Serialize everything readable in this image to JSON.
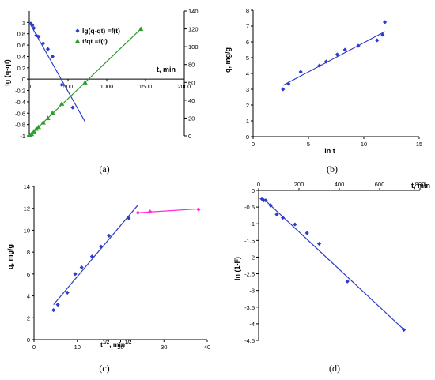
{
  "colors": {
    "blue": "#2e3cc8",
    "green": "#2e9c2e",
    "magenta": "#ff2bd5",
    "axis": "#000000"
  },
  "chart_data": [
    {
      "id": "a",
      "type": "scatter",
      "panel_label": "(a)",
      "ylabel_left": "lg (q-qt)",
      "ylabel_right": "",
      "xlabel": "t, min",
      "xlim": [
        0,
        2000
      ],
      "ylim_left": [
        -1,
        1.2
      ],
      "ylim_right": [
        0,
        140
      ],
      "x_ticks": [
        0,
        500,
        1000,
        1500,
        2000
      ],
      "y_ticks_left": [
        -1,
        -0.8,
        -0.6,
        -0.4,
        -0.2,
        0,
        0.2,
        0.4,
        0.6,
        0.8,
        1
      ],
      "y_ticks_left_labels": [
        "-1",
        "-0.8",
        "-0.6",
        "-0.4",
        "-0.2",
        "0",
        "0.2",
        "0.4",
        "0.6",
        "0.8",
        "1"
      ],
      "y_ticks_right": [
        0,
        20,
        40,
        60,
        80,
        100,
        120,
        140
      ],
      "series": [
        {
          "name": "lg(q-qt) =f(t)",
          "axis": "left",
          "marker": "diamond",
          "color": "#2e3cc8",
          "x": [
            20,
            40,
            60,
            90,
            120,
            180,
            240,
            300,
            420,
            560
          ],
          "y": [
            0.98,
            0.95,
            0.9,
            0.77,
            0.75,
            0.63,
            0.53,
            0.4,
            -0.1,
            -0.5
          ],
          "fit": {
            "x": [
              0,
              720
            ],
            "y": [
              1.0,
              -0.75
            ]
          }
        },
        {
          "name": "t/qt =f(t)",
          "axis": "right",
          "marker": "triangle",
          "color": "#2e9c2e",
          "x": [
            10,
            30,
            60,
            90,
            120,
            180,
            240,
            300,
            420,
            720,
            1440
          ],
          "y": [
            1,
            2,
            5,
            8,
            10,
            15,
            20,
            26,
            36,
            60,
            120
          ],
          "fit": {
            "x": [
              0,
              1440
            ],
            "y": [
              0,
              120
            ]
          }
        }
      ],
      "legend_position": "middle-right"
    },
    {
      "id": "b",
      "type": "scatter",
      "panel_label": "(b)",
      "ylabel": "q, mg/g",
      "xlabel": "ln t",
      "xlim": [
        0,
        15
      ],
      "ylim": [
        0,
        8
      ],
      "x_ticks": [
        0,
        5,
        10,
        15
      ],
      "y_ticks": [
        0,
        1,
        2,
        3,
        4,
        5,
        6,
        7,
        8
      ],
      "series": [
        {
          "marker": "diamond",
          "color": "#2e3cc8",
          "x": [
            2.7,
            3.2,
            4.3,
            6.0,
            6.6,
            7.6,
            8.3,
            9.5,
            11.2,
            11.7,
            11.9
          ],
          "y": [
            3.0,
            3.35,
            4.1,
            4.5,
            4.75,
            5.2,
            5.5,
            5.75,
            6.1,
            6.45,
            7.25
          ],
          "fit": {
            "x": [
              2.7,
              11.9
            ],
            "y": [
              3.25,
              6.65
            ]
          }
        }
      ]
    },
    {
      "id": "c",
      "type": "scatter",
      "panel_label": "(c)",
      "ylabel": "q, mg/g",
      "xlabel": "t",
      "xlabel_sup": "1/2",
      "xlabel_mid": ", min",
      "xlabel_sup2": "1/2",
      "xlim": [
        0,
        40
      ],
      "ylim": [
        0,
        14
      ],
      "x_ticks": [
        0,
        10,
        20,
        30,
        40
      ],
      "y_ticks": [
        0,
        2,
        4,
        6,
        8,
        10,
        12,
        14
      ],
      "series": [
        {
          "marker": "diamond",
          "color": "#2e3cc8",
          "x": [
            4.5,
            5.5,
            7.7,
            9.5,
            11.0,
            13.4,
            15.5,
            17.3,
            21.9
          ],
          "y": [
            2.7,
            3.2,
            4.3,
            6.0,
            6.6,
            7.6,
            8.5,
            9.5,
            11.1
          ],
          "fit": {
            "x": [
              4.5,
              24.0
            ],
            "y": [
              3.2,
              12.3
            ]
          }
        },
        {
          "marker": "diamond",
          "color": "#ff2bd5",
          "x": [
            24.0,
            26.8,
            38.0
          ],
          "y": [
            11.6,
            11.7,
            11.9
          ],
          "fit": {
            "x": [
              24.0,
              38.0
            ],
            "y": [
              11.6,
              11.95
            ]
          }
        }
      ]
    },
    {
      "id": "d",
      "type": "scatter",
      "panel_label": "(d)",
      "ylabel": "ln (1-F)",
      "xlabel": "t, min",
      "xlim": [
        0,
        800
      ],
      "ylim": [
        -4.5,
        0
      ],
      "x_ticks": [
        0,
        200,
        400,
        600,
        800
      ],
      "y_ticks": [
        0,
        -0.5,
        -1,
        -1.5,
        -2,
        -2.5,
        -3,
        -3.5,
        -4,
        -4.5
      ],
      "y_ticks_labels": [
        "0",
        "-0.5",
        "-1",
        "-1.5",
        "-2",
        "-2.5",
        "-3",
        "-3.5",
        "-4",
        "-4.5"
      ],
      "series": [
        {
          "marker": "diamond",
          "color": "#2e3cc8",
          "x": [
            15,
            25,
            35,
            60,
            90,
            120,
            180,
            240,
            300,
            440,
            720
          ],
          "y": [
            -0.25,
            -0.3,
            -0.3,
            -0.45,
            -0.72,
            -0.82,
            -1.02,
            -1.28,
            -1.6,
            -2.73,
            -4.18
          ],
          "fit": {
            "x": [
              15,
              725
            ],
            "y": [
              -0.2,
              -4.2
            ]
          }
        }
      ]
    }
  ]
}
